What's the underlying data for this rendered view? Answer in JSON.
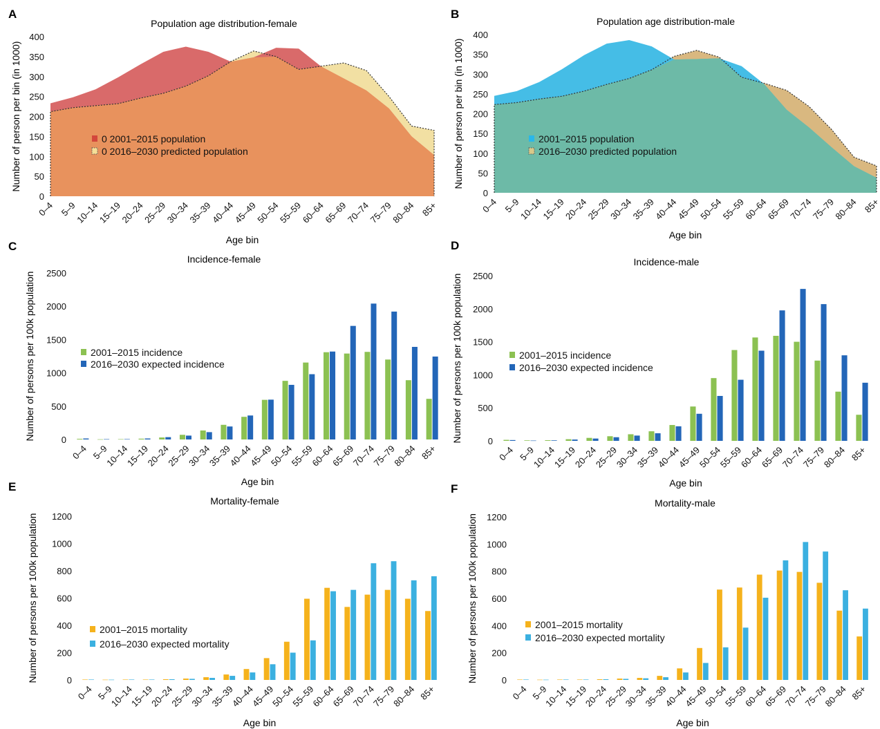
{
  "categories": [
    "0–4",
    "5–9",
    "10–14",
    "15–19",
    "20–24",
    "25–29",
    "30–34",
    "35–39",
    "40–44",
    "45–49",
    "50–54",
    "55–59",
    "60–64",
    "65–69",
    "70–74",
    "75–79",
    "80–84",
    "85+"
  ],
  "chart_data": [
    {
      "panel": "A",
      "type": "area",
      "title": "Population age distribution-female",
      "xlabel": "Age bin",
      "ylabel": "Number of person per bin (in 1000)",
      "ylim": [
        0,
        400
      ],
      "yticks": [
        0,
        50,
        100,
        150,
        200,
        250,
        300,
        350,
        400
      ],
      "legend": "center-left",
      "series": [
        {
          "name": "0 2001–2015 population",
          "color": "#d96a6a",
          "values": [
            233,
            248,
            268,
            298,
            331,
            362,
            375,
            362,
            337,
            348,
            372,
            370,
            325,
            295,
            265,
            220,
            150,
            103
          ]
        },
        {
          "name": "0 2016–2030 predicted population",
          "color": "#f2e0a3",
          "values": [
            212,
            222,
            227,
            232,
            246,
            258,
            276,
            302,
            338,
            364,
            350,
            318,
            326,
            334,
            315,
            250,
            176,
            165
          ]
        }
      ],
      "overlap_color": "#e8925d",
      "legend_markers": [
        "#d3473c",
        "#f6df97"
      ]
    },
    {
      "panel": "B",
      "type": "area",
      "title": "Population age distribution-male",
      "xlabel": "Age bin",
      "ylabel": "Number of person per bin (in 1000)",
      "ylim": [
        0,
        400
      ],
      "yticks": [
        0,
        50,
        100,
        150,
        200,
        250,
        300,
        350,
        400
      ],
      "legend": "center-left",
      "series": [
        {
          "name": "2001–2015 population",
          "color": "#45bde6",
          "values": [
            245,
            257,
            280,
            312,
            348,
            377,
            386,
            370,
            337,
            338,
            340,
            320,
            275,
            210,
            165,
            115,
            67,
            38
          ]
        },
        {
          "name": "2016–2030 predicted population",
          "color": "#d9b880",
          "values": [
            223,
            228,
            237,
            244,
            257,
            274,
            289,
            311,
            345,
            360,
            343,
            292,
            277,
            259,
            218,
            160,
            90,
            68
          ]
        }
      ],
      "overlap_color": "#6dbaa7",
      "legend_markers": [
        "#2ab7e9",
        "#d8c98a"
      ]
    },
    {
      "panel": "C",
      "type": "bar",
      "title": "Incidence-female",
      "xlabel": "Age bin",
      "ylabel": "Number of persons per 100k population",
      "ylim": [
        0,
        2500
      ],
      "yticks": [
        0,
        500,
        1000,
        1500,
        2000,
        2500
      ],
      "legend": "center-left",
      "series": [
        {
          "name": "2001–2015 incidence",
          "color": "#8cc152",
          "values": [
            10,
            3,
            5,
            12,
            30,
            70,
            135,
            220,
            340,
            595,
            880,
            1155,
            1310,
            1290,
            1315,
            1200,
            890,
            610
          ]
        },
        {
          "name": "2016–2030 expected incidence",
          "color": "#2366b8",
          "values": [
            15,
            5,
            6,
            15,
            35,
            58,
            110,
            195,
            360,
            598,
            820,
            980,
            1320,
            1705,
            2040,
            1920,
            1390,
            1245
          ]
        }
      ]
    },
    {
      "panel": "D",
      "type": "bar",
      "title": "Incidence-male",
      "xlabel": "Age bin",
      "ylabel": "Number of persons per 100k population",
      "ylim": [
        0,
        2500
      ],
      "yticks": [
        0,
        500,
        1000,
        1500,
        2000,
        2500
      ],
      "legend": "center-left",
      "series": [
        {
          "name": "2001–2015 incidence",
          "color": "#8cc152",
          "values": [
            15,
            8,
            10,
            25,
            45,
            70,
            100,
            145,
            240,
            520,
            950,
            1375,
            1565,
            1590,
            1500,
            1215,
            745,
            395
          ]
        },
        {
          "name": "2016–2030 expected incidence",
          "color": "#2366b8",
          "values": [
            12,
            5,
            8,
            20,
            35,
            55,
            80,
            115,
            220,
            410,
            680,
            925,
            1365,
            1975,
            2300,
            2070,
            1295,
            880
          ]
        }
      ]
    },
    {
      "panel": "E",
      "type": "bar",
      "title": "Mortality-female",
      "xlabel": "Age bin",
      "ylabel": "Number of persons per 100k population",
      "ylim": [
        0,
        1200
      ],
      "yticks": [
        0,
        200,
        400,
        600,
        800,
        1000,
        1200
      ],
      "legend": "center-left",
      "series": [
        {
          "name": "2001–2015 mortality",
          "color": "#f5b21c",
          "values": [
            3,
            2,
            3,
            3,
            5,
            10,
            20,
            40,
            80,
            160,
            280,
            595,
            675,
            535,
            625,
            660,
            595,
            505
          ]
        },
        {
          "name": "2016–2030 expected mortality",
          "color": "#3bb0e0",
          "values": [
            3,
            2,
            3,
            3,
            5,
            8,
            15,
            30,
            55,
            115,
            200,
            290,
            650,
            660,
            855,
            870,
            730,
            760
          ]
        }
      ]
    },
    {
      "panel": "F",
      "type": "bar",
      "title": "Mortality-male",
      "xlabel": "Age bin",
      "ylabel": "Number of persons per 100k population",
      "ylim": [
        0,
        1200
      ],
      "yticks": [
        0,
        200,
        400,
        600,
        800,
        1000,
        1200
      ],
      "legend": "center-left",
      "series": [
        {
          "name": "2001–2015 mortality",
          "color": "#f5b21c",
          "values": [
            3,
            2,
            3,
            3,
            5,
            10,
            15,
            30,
            85,
            235,
            665,
            680,
            775,
            805,
            795,
            715,
            510,
            320
          ]
        },
        {
          "name": "2016–2030 expected mortality",
          "color": "#3bb0e0",
          "values": [
            3,
            2,
            3,
            3,
            5,
            8,
            12,
            20,
            55,
            125,
            240,
            385,
            605,
            880,
            1015,
            945,
            660,
            525
          ]
        }
      ]
    }
  ]
}
